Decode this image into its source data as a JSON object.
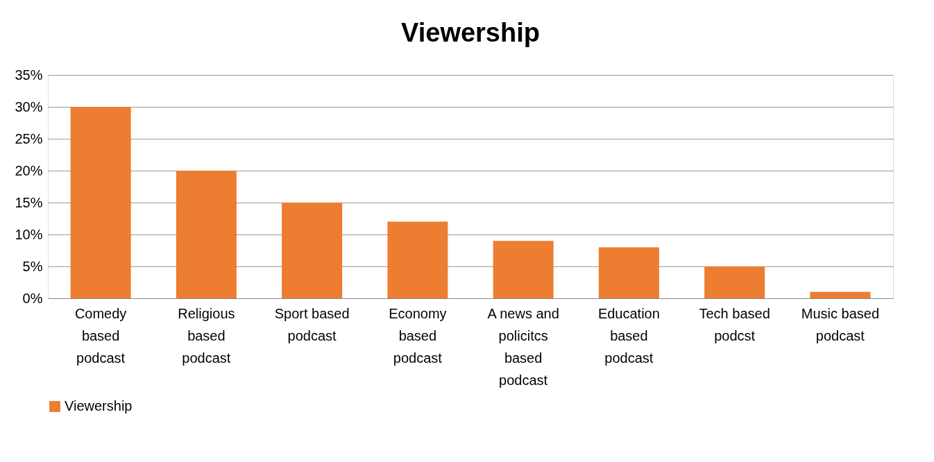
{
  "chart_data": {
    "type": "bar",
    "title": "Viewership",
    "categories": [
      "Comedy based podcast",
      "Religious based podcast",
      "Sport based podcast",
      "Economy based podcast",
      "A news and policitcs based podcast",
      "Education based podcast",
      "Tech based podcst",
      "Music based podcast"
    ],
    "series": [
      {
        "name": "Viewership",
        "color": "#ed7d31",
        "values": [
          30,
          20,
          15,
          12,
          9,
          8,
          5,
          1
        ]
      }
    ],
    "ylim": [
      0,
      35
    ],
    "yticks": [
      {
        "value": 0,
        "label": "0%"
      },
      {
        "value": 5,
        "label": "5%"
      },
      {
        "value": 10,
        "label": "10%"
      },
      {
        "value": 15,
        "label": "15%"
      },
      {
        "value": 20,
        "label": "20%"
      },
      {
        "value": 25,
        "label": "25%"
      },
      {
        "value": 30,
        "label": "30%"
      },
      {
        "value": 35,
        "label": "35%"
      }
    ],
    "grid": "y",
    "legend": "bottom"
  }
}
